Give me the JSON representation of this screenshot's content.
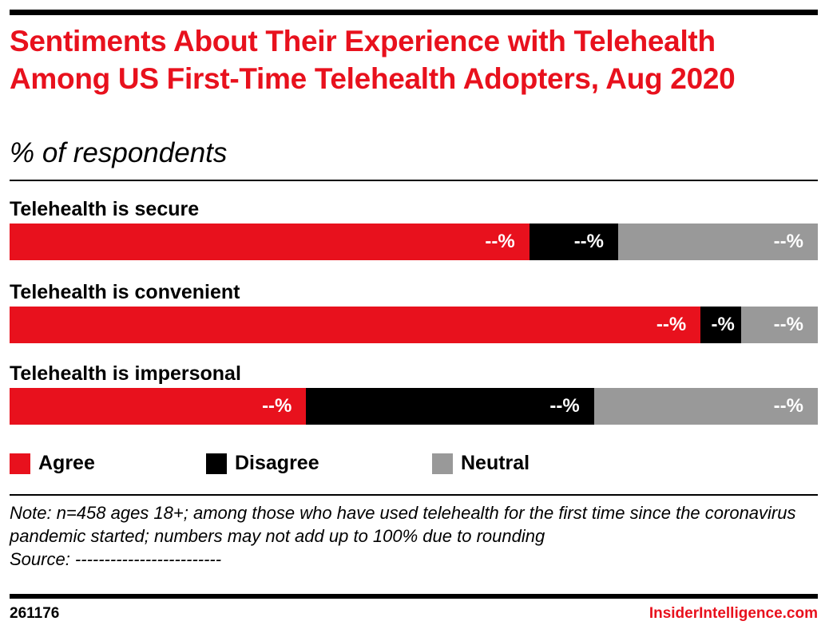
{
  "header": {
    "title": "Sentiments About Their Experience with Telehealth Among US First-Time Telehealth Adopters, Aug 2020",
    "subtitle": "% of respondents"
  },
  "colors": {
    "agree": "#e8111d",
    "disagree": "#000000",
    "neutral": "#999999",
    "brand": "#e8111d"
  },
  "chart_data": {
    "type": "bar",
    "orientation": "horizontal",
    "stacked": true,
    "categories": [
      "Telehealth is secure",
      "Telehealth is convenient",
      "Telehealth is impersonal"
    ],
    "series": [
      {
        "name": "Agree",
        "values": [
          64.3,
          85.5,
          36.7
        ],
        "labels": [
          "--%",
          "--%",
          "--%"
        ]
      },
      {
        "name": "Disagree",
        "values": [
          11.0,
          5.0,
          35.6
        ],
        "labels": [
          "--%",
          "-%",
          "--%"
        ]
      },
      {
        "name": "Neutral",
        "values": [
          24.7,
          9.5,
          27.7
        ],
        "labels": [
          "--%",
          "--%",
          "--%"
        ]
      }
    ],
    "xlim": [
      0,
      100
    ],
    "legend_position": "bottom-left",
    "grid": false
  },
  "legend": {
    "items": [
      "Agree",
      "Disagree",
      "Neutral"
    ]
  },
  "footer": {
    "note": "Note: n=458 ages 18+; among those who have used telehealth for the first time since the coronavirus pandemic started; numbers may not add up to 100% due to rounding",
    "source": "Source: -------------------------",
    "chart_id": "261176",
    "brand": "InsiderIntelligence.com"
  }
}
